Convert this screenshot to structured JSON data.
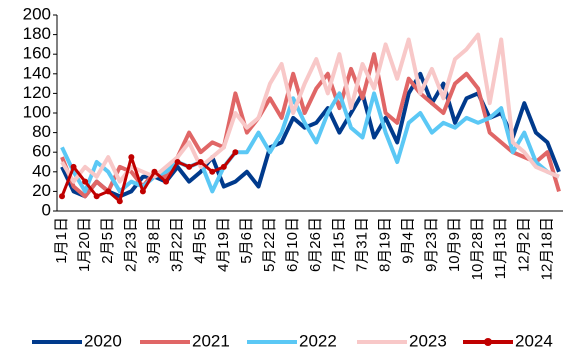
{
  "chart_data": {
    "type": "line",
    "categories": [
      "1月1日",
      null,
      "1月20日",
      null,
      "2月5日",
      null,
      "2月23日",
      null,
      "3月8日",
      null,
      "3月22日",
      null,
      "4月5日",
      null,
      "4月19日",
      null,
      "5月6日",
      null,
      "5月22日",
      null,
      "6月10日",
      null,
      "6月26日",
      null,
      "7月15日",
      null,
      "7月31日",
      null,
      "8月19日",
      null,
      "9月4日",
      null,
      "9月23日",
      null,
      "10月9日",
      null,
      "10月28日",
      null,
      "11月13日",
      null,
      "12月2日",
      null,
      "12月18日",
      null
    ],
    "ylim": [
      0,
      200
    ],
    "yticks": [
      0,
      20,
      40,
      60,
      80,
      100,
      120,
      140,
      160,
      180,
      200
    ],
    "series": [
      {
        "name": "2020",
        "color": "#003a8c",
        "values": [
          45,
          20,
          15,
          30,
          20,
          15,
          20,
          35,
          35,
          30,
          45,
          30,
          40,
          55,
          25,
          30,
          40,
          25,
          65,
          70,
          95,
          85,
          90,
          105,
          80,
          100,
          120,
          75,
          95,
          70,
          120,
          140,
          110,
          130,
          90,
          115,
          120,
          95,
          100,
          75,
          110,
          80,
          70,
          40
        ]
      },
      {
        "name": "2021",
        "color": "#e06666",
        "values": [
          55,
          25,
          15,
          30,
          20,
          45,
          40,
          25,
          40,
          35,
          55,
          80,
          60,
          70,
          65,
          120,
          80,
          95,
          115,
          95,
          140,
          100,
          125,
          140,
          105,
          145,
          115,
          160,
          100,
          90,
          135,
          120,
          110,
          100,
          130,
          140,
          125,
          80,
          70,
          60,
          55,
          50,
          60,
          20
        ]
      },
      {
        "name": "2022",
        "color": "#5bc8f5",
        "values": [
          65,
          40,
          20,
          50,
          40,
          20,
          30,
          25,
          35,
          40,
          50,
          45,
          50,
          20,
          45,
          60,
          60,
          80,
          60,
          80,
          115,
          90,
          70,
          100,
          120,
          85,
          75,
          120,
          80,
          50,
          90,
          100,
          80,
          90,
          85,
          95,
          90,
          95,
          105,
          60,
          80,
          50,
          40,
          35
        ]
      },
      {
        "name": "2023",
        "color": "#f8c8c8",
        "values": [
          50,
          30,
          45,
          35,
          55,
          30,
          45,
          40,
          35,
          45,
          55,
          70,
          45,
          55,
          65,
          100,
          85,
          95,
          130,
          150,
          100,
          130,
          155,
          120,
          160,
          105,
          150,
          125,
          170,
          135,
          175,
          120,
          145,
          115,
          155,
          165,
          180,
          110,
          175,
          70,
          60,
          45,
          40,
          35
        ]
      },
      {
        "name": "2024",
        "color": "#c00000",
        "values": [
          15,
          45,
          30,
          15,
          20,
          10,
          55,
          20,
          40,
          30,
          50,
          45,
          50,
          40,
          45,
          60,
          null,
          null,
          null,
          null,
          null,
          null,
          null,
          null,
          null,
          null,
          null,
          null,
          null,
          null,
          null,
          null,
          null,
          null,
          null,
          null,
          null,
          null,
          null,
          null,
          null,
          null,
          null,
          null
        ]
      }
    ]
  }
}
